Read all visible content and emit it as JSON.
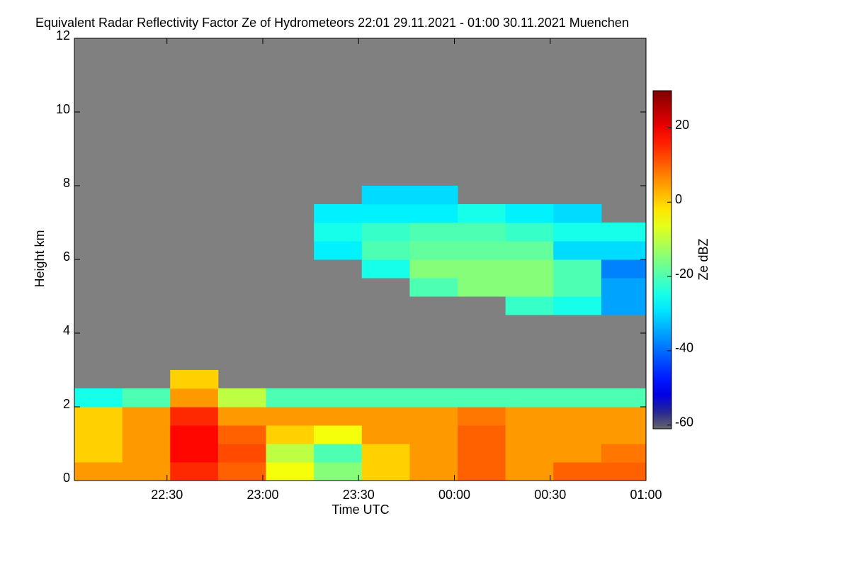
{
  "chart_data": {
    "type": "heatmap",
    "title": "Equivalent Radar Reflectivity Factor Ze of Hydrometeors   22:01 29.11.2021 - 01:00 30.11.2021 Muenchen",
    "x_label": "Time UTC",
    "y_label": "Height km",
    "colorbar_label": "Ze dBZ",
    "xlim": [
      1,
      180
    ],
    "ylim": [
      0,
      12
    ],
    "zlim": [
      -61,
      30
    ],
    "xticks": [
      {
        "value": 30,
        "label": "22:30"
      },
      {
        "value": 60,
        "label": "23:00"
      },
      {
        "value": 90,
        "label": "23:30"
      },
      {
        "value": 120,
        "label": "00:00"
      },
      {
        "value": 150,
        "label": "00:30"
      },
      {
        "value": 180,
        "label": "01:00"
      }
    ],
    "yticks": [
      0,
      2,
      4,
      6,
      8,
      10,
      12
    ],
    "zticks": [
      -60,
      -40,
      -20,
      0,
      20
    ],
    "colormap": "jet",
    "nodata_color": "#808080",
    "xbins": [
      1,
      16,
      31,
      46,
      61,
      76,
      91,
      106,
      121,
      136,
      151,
      166,
      180
    ],
    "ybins": [
      0,
      0.5,
      1,
      1.5,
      2,
      2.5,
      3,
      3.5,
      4,
      4.5,
      5,
      5.5,
      6,
      6.5,
      7,
      7.5,
      8
    ],
    "z": [
      [
        5,
        5,
        15,
        10,
        -5,
        -15,
        0,
        5,
        10,
        5,
        10,
        10
      ],
      [
        0,
        5,
        18,
        12,
        -10,
        -20,
        0,
        5,
        10,
        5,
        5,
        8
      ],
      [
        0,
        5,
        18,
        10,
        0,
        -5,
        5,
        5,
        10,
        5,
        5,
        5
      ],
      [
        0,
        5,
        15,
        5,
        5,
        5,
        5,
        5,
        8,
        5,
        5,
        5
      ],
      [
        -25,
        -20,
        5,
        -10,
        -20,
        -20,
        -20,
        -20,
        -20,
        -20,
        -20,
        -20
      ],
      [
        null,
        null,
        0,
        null,
        null,
        null,
        null,
        null,
        null,
        null,
        null,
        null
      ],
      [
        null,
        null,
        null,
        null,
        null,
        null,
        null,
        null,
        null,
        null,
        null,
        null
      ],
      [
        null,
        null,
        null,
        null,
        null,
        null,
        null,
        null,
        null,
        null,
        null,
        null
      ],
      [
        null,
        null,
        null,
        null,
        null,
        null,
        null,
        null,
        null,
        null,
        null,
        null
      ],
      [
        null,
        null,
        null,
        null,
        null,
        null,
        null,
        null,
        null,
        -22,
        -25,
        -35
      ],
      [
        null,
        null,
        null,
        null,
        null,
        null,
        null,
        -20,
        -15,
        -15,
        -20,
        -35
      ],
      [
        null,
        null,
        null,
        null,
        null,
        null,
        -25,
        -15,
        -15,
        -15,
        -20,
        -38
      ],
      [
        null,
        null,
        null,
        null,
        null,
        -28,
        -20,
        -18,
        -18,
        -18,
        -30,
        -30
      ],
      [
        null,
        null,
        null,
        null,
        null,
        -25,
        -22,
        -20,
        -20,
        -22,
        -25,
        -25
      ],
      [
        null,
        null,
        null,
        null,
        null,
        -28,
        -28,
        -28,
        -25,
        -28,
        -30,
        null
      ],
      [
        null,
        null,
        null,
        null,
        null,
        null,
        -30,
        -30,
        null,
        null,
        null,
        null
      ]
    ]
  }
}
